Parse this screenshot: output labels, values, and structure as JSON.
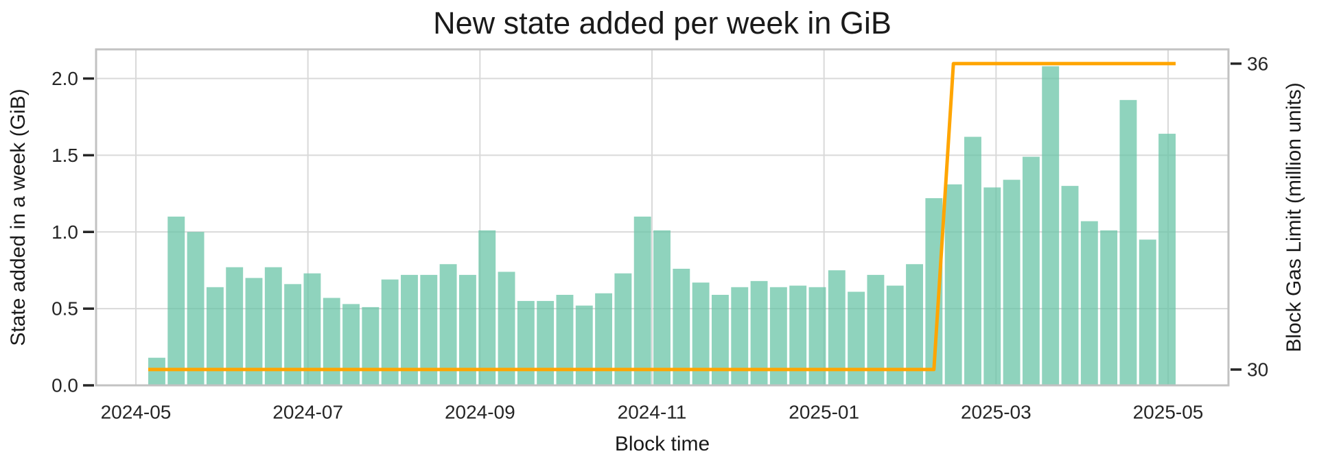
{
  "figure": {
    "title": "New state added per week in GiB",
    "xlabel": "Block time",
    "ylabel_left": "State added in a week (GiB)",
    "ylabel_right": "Block Gas Limit (million units)"
  },
  "chart_data": {
    "type": "bar",
    "title": "New state added per week in GiB",
    "xlabel": "Block time",
    "ylabel_left": "State added in a week (GiB)",
    "ylabel_right": "Block Gas Limit (million units)",
    "grid": true,
    "legend": "none",
    "x_tick_labels": [
      "2024-05",
      "2024-07",
      "2024-09",
      "2024-11",
      "2025-01",
      "2025-03",
      "2025-05"
    ],
    "y_ticks_left": [
      "0.0",
      "0.5",
      "1.0",
      "1.5",
      "2.0"
    ],
    "y_tick_values_left": [
      0.0,
      0.5,
      1.0,
      1.5,
      2.0
    ],
    "y_ticks_right": [
      "30",
      "36"
    ],
    "y_tick_values_right": [
      30,
      36
    ],
    "ylim_left": [
      0,
      2.19
    ],
    "ylim_right": [
      29.69,
      36.28
    ],
    "weeks": [
      "2024-05-06",
      "2024-05-13",
      "2024-05-20",
      "2024-05-27",
      "2024-06-03",
      "2024-06-10",
      "2024-06-17",
      "2024-06-24",
      "2024-07-01",
      "2024-07-08",
      "2024-07-15",
      "2024-07-22",
      "2024-07-29",
      "2024-08-05",
      "2024-08-12",
      "2024-08-19",
      "2024-08-26",
      "2024-09-02",
      "2024-09-09",
      "2024-09-16",
      "2024-09-23",
      "2024-09-30",
      "2024-10-07",
      "2024-10-14",
      "2024-10-21",
      "2024-10-28",
      "2024-11-04",
      "2024-11-11",
      "2024-11-18",
      "2024-11-25",
      "2024-12-02",
      "2024-12-09",
      "2024-12-16",
      "2024-12-23",
      "2024-12-30",
      "2025-01-06",
      "2025-01-13",
      "2025-01-20",
      "2025-01-27",
      "2025-02-03",
      "2025-02-10",
      "2025-02-17",
      "2025-02-24",
      "2025-03-03",
      "2025-03-10",
      "2025-03-17",
      "2025-03-24",
      "2025-03-31",
      "2025-04-07",
      "2025-04-14",
      "2025-04-21",
      "2025-04-28",
      "2025-05-05"
    ],
    "series": [
      {
        "name": "State added in a week (GiB)",
        "type": "bar",
        "axis": "left",
        "values": [
          0.18,
          1.1,
          1.0,
          0.64,
          0.77,
          0.7,
          0.77,
          0.66,
          0.73,
          0.57,
          0.53,
          0.51,
          0.69,
          0.72,
          0.72,
          0.79,
          0.72,
          1.01,
          0.74,
          0.55,
          0.55,
          0.59,
          0.52,
          0.6,
          0.73,
          1.1,
          1.01,
          0.76,
          0.67,
          0.59,
          0.64,
          0.68,
          0.64,
          0.65,
          0.64,
          0.75,
          0.61,
          0.72,
          0.65,
          0.79,
          1.22,
          1.31,
          1.62,
          1.29,
          1.34,
          1.49,
          2.08,
          1.3,
          1.07,
          1.01,
          1.86,
          0.95,
          1.64
        ]
      },
      {
        "name": "Block Gas Limit (million units)",
        "type": "line",
        "axis": "right",
        "values": [
          30,
          30,
          30,
          30,
          30,
          30,
          30,
          30,
          30,
          30,
          30,
          30,
          30,
          30,
          30,
          30,
          30,
          30,
          30,
          30,
          30,
          30,
          30,
          30,
          30,
          30,
          30,
          30,
          30,
          30,
          30,
          30,
          30,
          30,
          30,
          30,
          30,
          30,
          30,
          30,
          30,
          36,
          36,
          36,
          36,
          36,
          36,
          36,
          36,
          36,
          36,
          36,
          36
        ]
      }
    ],
    "colors": {
      "bar": "#66c2a5",
      "bar_displayed": "#8fd2bd",
      "line": "#ffa500",
      "grid": "#d9d9d9",
      "spine": "#c2c2c2",
      "text": "#262626",
      "background": "#ffffff"
    }
  }
}
